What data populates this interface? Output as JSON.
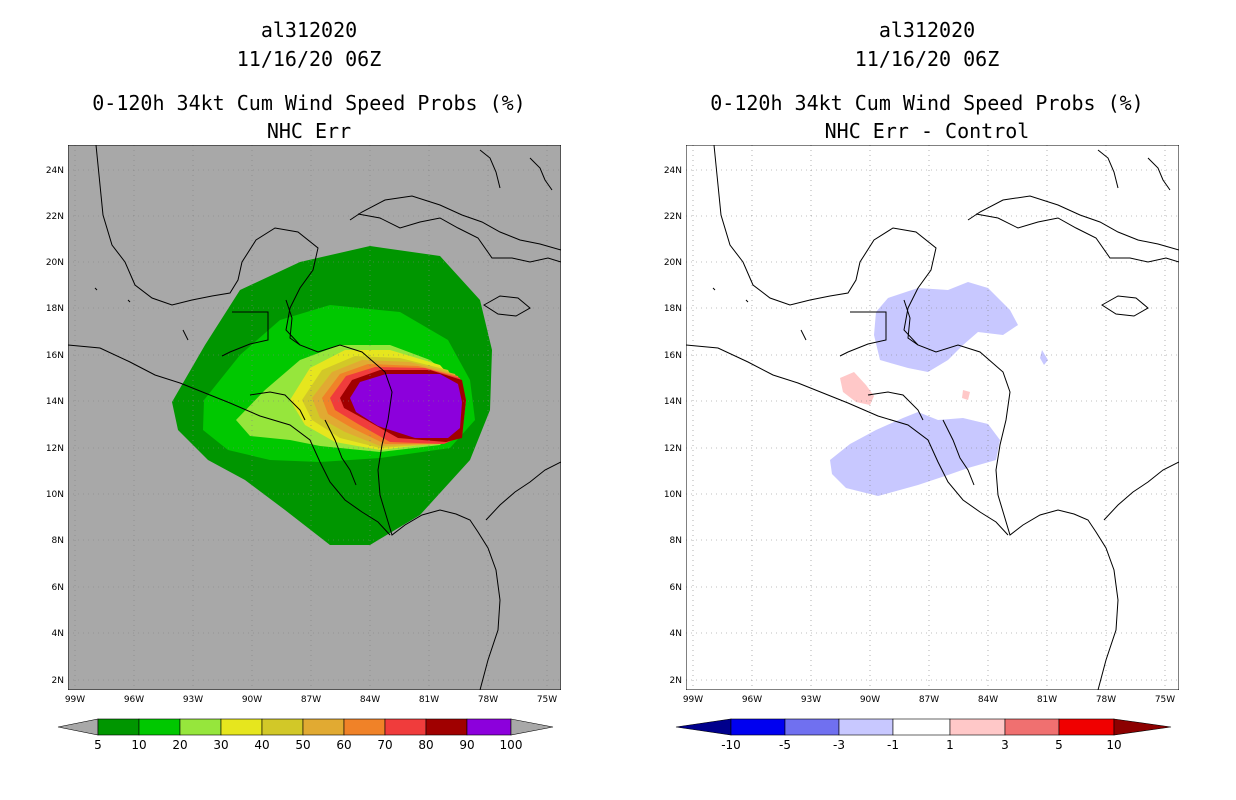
{
  "colors": {
    "land_bg": "#a8a8a8",
    "p5": "#009600",
    "p10": "#00c800",
    "p20": "#96e63c",
    "p30": "#e6e61e",
    "p40": "#d2c828",
    "p50": "#e1aa32",
    "p60": "#f08228",
    "p70": "#f03c3c",
    "p80": "#a00000",
    "p90": "#8c00dc",
    "d_m10": "#00008c",
    "d_m5": "#0000f0",
    "d_m3": "#7070f0",
    "d_m1": "#c8c8ff",
    "d_0": "#ffffff",
    "d_1": "#ffc8c8",
    "d_3": "#f07070",
    "d_5": "#f00000",
    "d_10": "#8c0000"
  },
  "panels": [
    {
      "title_line1": "al312020",
      "title_line2": "11/16/20 06Z",
      "title_line3": "0-120h 34kt Cum Wind Speed Probs (%)",
      "title_line4": "NHC Err",
      "lon_labels": [
        "99W",
        "96W",
        "93W",
        "90W",
        "87W",
        "84W",
        "81W",
        "78W",
        "75W"
      ],
      "lat_labels": [
        "24N",
        "22N",
        "20N",
        "18N",
        "16N",
        "14N",
        "12N",
        "10N",
        "8N",
        "6N",
        "4N",
        "2N"
      ],
      "colorbar_labels": [
        "5",
        "10",
        "20",
        "30",
        "40",
        "50",
        "60",
        "70",
        "80",
        "90",
        "100"
      ]
    },
    {
      "title_line1": "al312020",
      "title_line2": "11/16/20 06Z",
      "title_line3": "0-120h 34kt Cum Wind Speed Probs (%)",
      "title_line4": "NHC Err - Control",
      "lon_labels": [
        "99W",
        "96W",
        "93W",
        "90W",
        "87W",
        "84W",
        "81W",
        "78W",
        "75W"
      ],
      "lat_labels": [
        "24N",
        "22N",
        "20N",
        "18N",
        "16N",
        "14N",
        "12N",
        "10N",
        "8N",
        "6N",
        "4N",
        "2N"
      ],
      "colorbar_labels": [
        "-10",
        "-5",
        "-3",
        "-1",
        "1",
        "3",
        "5",
        "10"
      ]
    }
  ]
}
